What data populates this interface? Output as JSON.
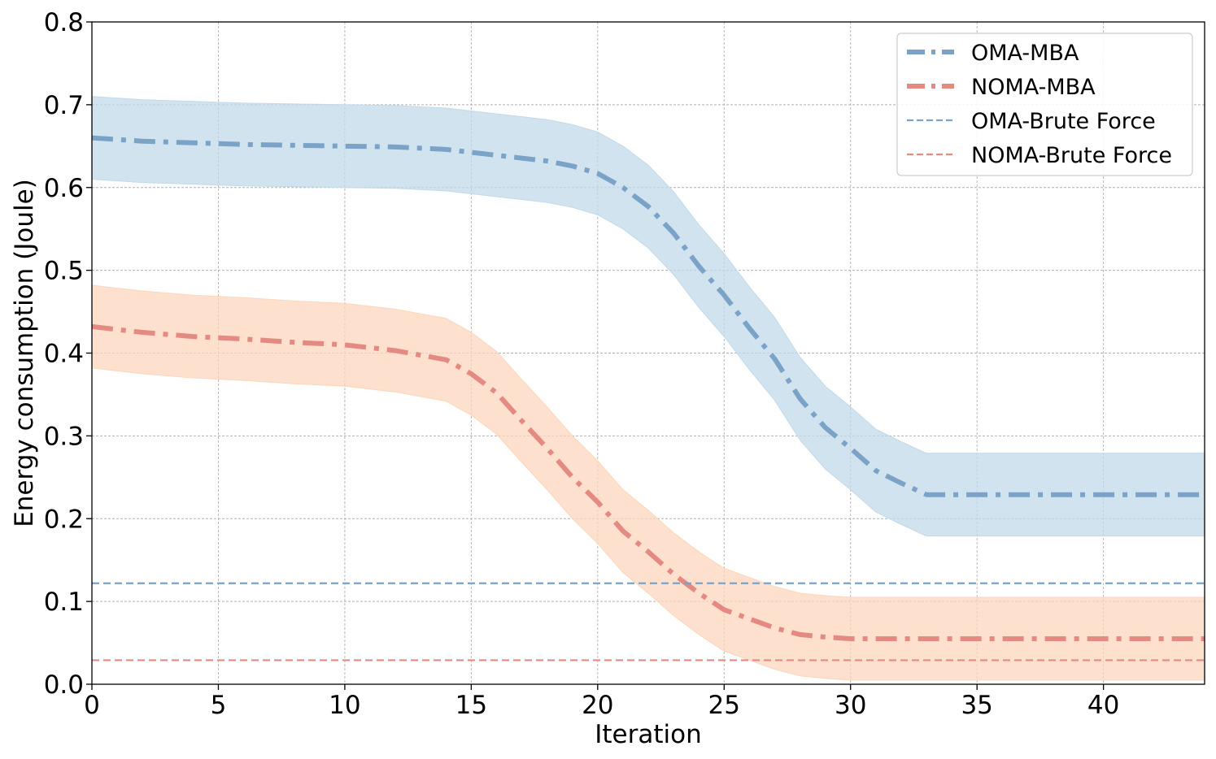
{
  "chart_data": {
    "type": "line",
    "title": "",
    "xlabel": "Iteration",
    "ylabel": "Energy consumption (Joule)",
    "xlim": [
      0,
      44
    ],
    "ylim": [
      0,
      0.8
    ],
    "xticks": [
      0,
      5,
      10,
      15,
      20,
      25,
      30,
      35,
      40
    ],
    "xtick_labels": [
      "0",
      "5",
      "10",
      "15",
      "20",
      "25",
      "30",
      "35",
      "40"
    ],
    "yticks": [
      0.0,
      0.1,
      0.2,
      0.3,
      0.4,
      0.5,
      0.6,
      0.7,
      0.8
    ],
    "ytick_labels": [
      "0.0",
      "0.1",
      "0.2",
      "0.3",
      "0.4",
      "0.5",
      "0.6",
      "0.7",
      "0.8"
    ],
    "grid": true,
    "legend_position": "top-right",
    "series": [
      {
        "name": "OMA-MBA",
        "style": "dashdot",
        "color": "#7ba3c8",
        "band_color": "#c2d9ea",
        "band_halfwidth": 0.05,
        "x": [
          0,
          2,
          4,
          6,
          8,
          10,
          12,
          14,
          16,
          18,
          19,
          20,
          21,
          22,
          23,
          24,
          25,
          26,
          27,
          28,
          29,
          30,
          31,
          32,
          33,
          34,
          36,
          38,
          40,
          42,
          44
        ],
        "y": [
          0.66,
          0.656,
          0.654,
          0.652,
          0.651,
          0.65,
          0.649,
          0.646,
          0.639,
          0.632,
          0.626,
          0.617,
          0.6,
          0.577,
          0.545,
          0.505,
          0.47,
          0.43,
          0.393,
          0.345,
          0.31,
          0.285,
          0.258,
          0.243,
          0.229,
          0.229,
          0.229,
          0.229,
          0.229,
          0.229,
          0.229
        ]
      },
      {
        "name": "NOMA-MBA",
        "style": "dashdot",
        "color": "#e48a82",
        "band_color": "#fcd6bc",
        "band_halfwidth": 0.05,
        "x": [
          0,
          2,
          4,
          6,
          8,
          10,
          12,
          14,
          15,
          16,
          17,
          18,
          19,
          20,
          21,
          22,
          23,
          24,
          25,
          26,
          27,
          28,
          29,
          30,
          32,
          34,
          36,
          38,
          40,
          42,
          44
        ],
        "y": [
          0.432,
          0.425,
          0.42,
          0.417,
          0.413,
          0.41,
          0.403,
          0.392,
          0.375,
          0.352,
          0.318,
          0.285,
          0.25,
          0.22,
          0.185,
          0.16,
          0.133,
          0.11,
          0.09,
          0.079,
          0.068,
          0.06,
          0.057,
          0.055,
          0.055,
          0.055,
          0.055,
          0.055,
          0.055,
          0.055,
          0.055
        ]
      },
      {
        "name": "OMA-Brute Force",
        "style": "dashed",
        "color": "#7ba3c8",
        "x": [
          0,
          44
        ],
        "y": [
          0.122,
          0.122
        ]
      },
      {
        "name": "NOMA-Brute Force",
        "style": "dashed",
        "color": "#e48a82",
        "x": [
          0,
          44
        ],
        "y": [
          0.029,
          0.029
        ]
      }
    ]
  }
}
